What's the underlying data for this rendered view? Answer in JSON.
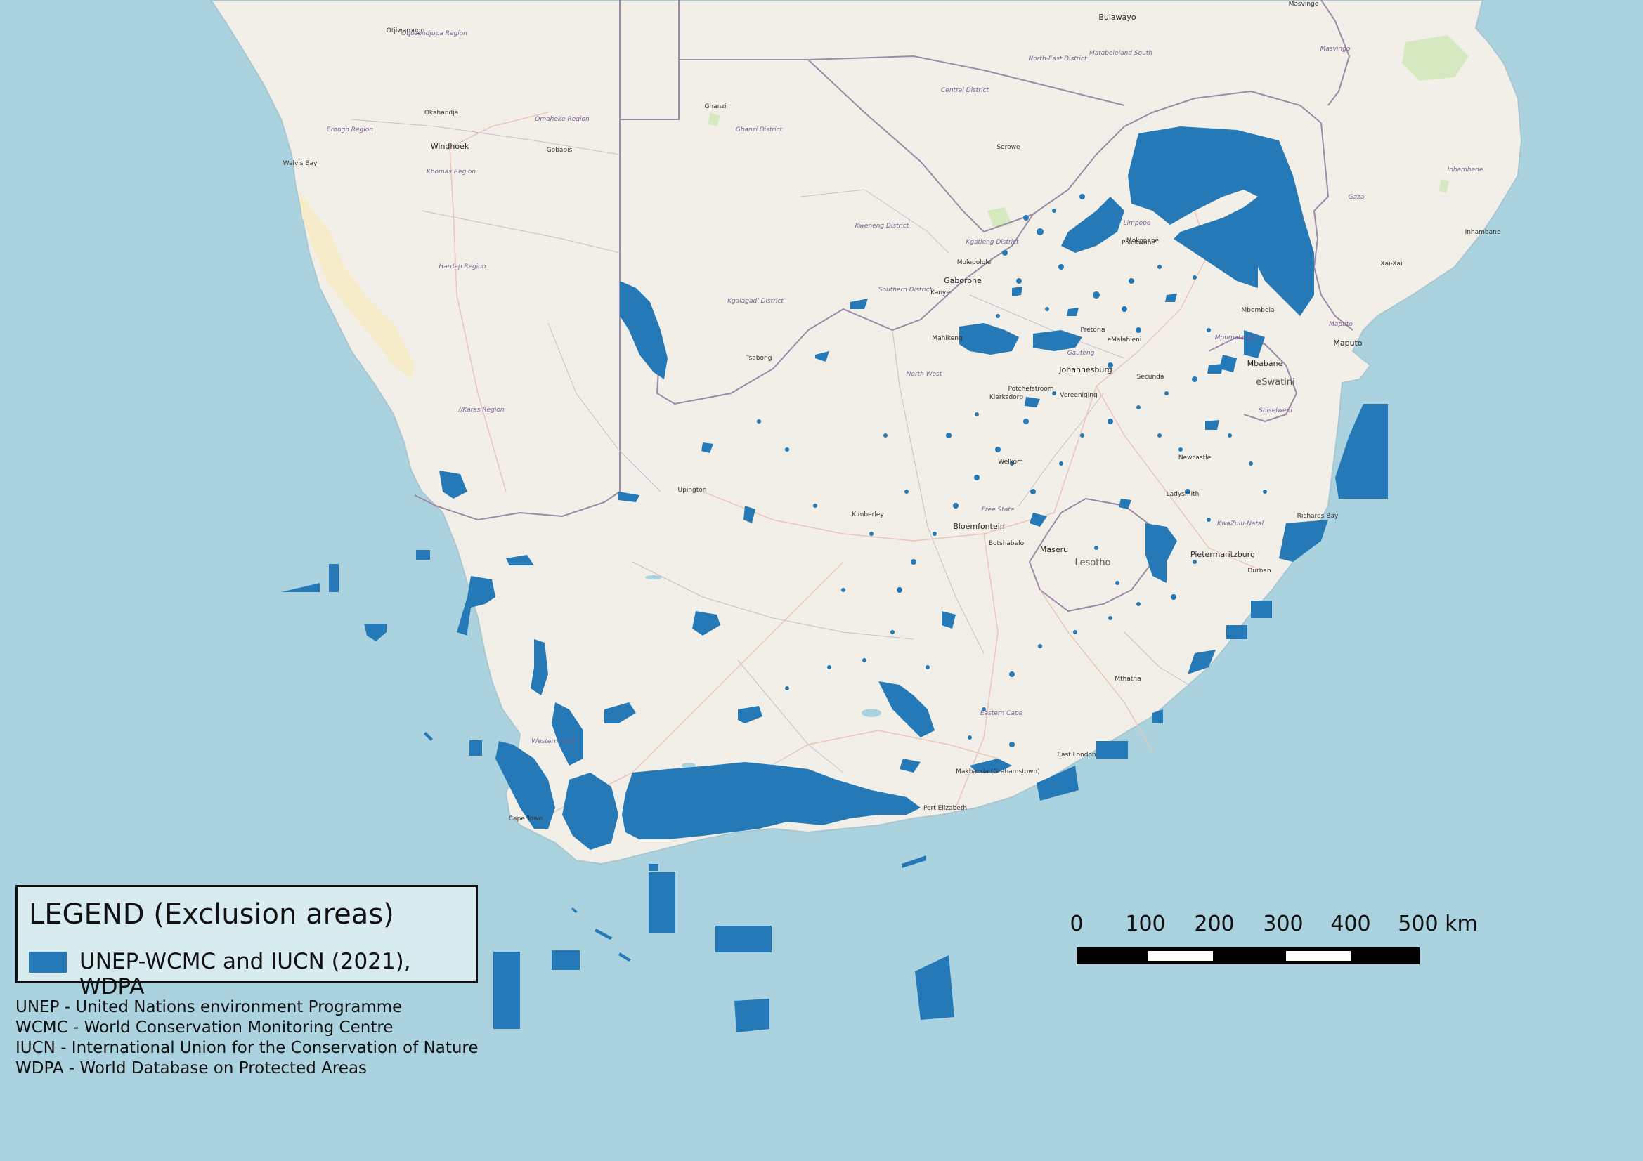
{
  "legend": {
    "title": "LEGEND (Exclusion areas)",
    "item_label": "UNEP-WCMC and IUCN (2021), WDPA",
    "swatch_color": "#2479b6"
  },
  "abbreviations": [
    "UNEP - United Nations environment Programme",
    "WCMC - World Conservation Monitoring Centre",
    "IUCN - International Union for the Conservation of Nature",
    "WDPA - World Database on Protected Areas"
  ],
  "scale_bar": {
    "labels": [
      "0",
      "100",
      "200",
      "300",
      "400",
      "500 km"
    ]
  },
  "map": {
    "colors": {
      "sea": "#aad3df",
      "land": "#f2efe9",
      "protected": "#2479b6",
      "border": "#9b8aa6"
    },
    "cities": {
      "windhoek": "Windhoek",
      "gaborone": "Gaborone",
      "johannesburg": "Johannesburg",
      "pretoria": "Pretoria",
      "maputo": "Maputo",
      "mbabane": "Mbabane",
      "maseru": "Maseru",
      "bloemfontein": "Bloemfontein",
      "durban": "Durban",
      "pietermaritzburg": "Pietermaritzburg",
      "port_elizabeth": "Port Elizabeth",
      "east_london": "East London",
      "cape_town": "Cape Town",
      "bulawayo": "Bulawayo",
      "upington": "Upington",
      "kimberley": "Kimberley",
      "polokwane": "Polokwane",
      "mahikeng": "Mahikeng",
      "welkom": "Welkom",
      "newcastle": "Newcastle",
      "ghanzi": "Ghanzi",
      "okahandja": "Okahandja",
      "otjiwarongo": "Otjiwarongo",
      "gobabis": "Gobabis",
      "walvis_bay": "Walvis Bay",
      "tsabong": "Tsabong",
      "serowe": "Serowe",
      "masvingo": "Masvingo",
      "inhambane": "Inhambane",
      "xai_xai": "Xai-Xai",
      "mbombela": "Mbombela",
      "potchefstroom": "Potchefstroom",
      "klerksdorp": "Klerksdorp",
      "vereeniging": "Vereeniging",
      "emalahleni": "eMalahleni",
      "secunda": "Secunda",
      "ladysmith": "Ladysmith",
      "mthatha": "Mthatha",
      "makhanda": "Makhanda (Grahamstown)",
      "botshabelo": "Botshabelo",
      "kanye": "Kanye",
      "molepolole": "Molepolole",
      "mokopane": "Mokopane",
      "richards_bay": "Richards Bay"
    },
    "countries": {
      "eswatini": "eSwatini",
      "lesotho": "Lesotho"
    },
    "regions": {
      "otjozondjupa": "Otjozondjupa Region",
      "erongo": "Erongo Region",
      "omaheke": "Omaheke Region",
      "khomas": "Khomas Region",
      "hardap": "Hardap Region",
      "karas": "//Karas Region",
      "ghanzi_district": "Ghanzi District",
      "kgalagadi": "Kgalagadi District",
      "kweneng": "Kweneng District",
      "southern_district": "Southern District",
      "kgatleng": "Kgatleng District",
      "central_district": "Central District",
      "north_east": "North-East District",
      "matabeleland_south": "Matabeleland South",
      "masvingo_prov": "Masvingo",
      "limpopo": "Limpopo",
      "mpumalanga": "Mpumalanga",
      "north_west": "North West",
      "free_state": "Free State",
      "kwazulu_natal": "KwaZulu-Natal",
      "eastern_cape": "Eastern Cape",
      "western_cape": "Western Cape",
      "gauteng": "Gauteng",
      "maputo_prov": "Maputo",
      "gaza": "Gaza",
      "inhambane_prov": "Inhambane",
      "shiselweni": "Shiselweni"
    }
  }
}
